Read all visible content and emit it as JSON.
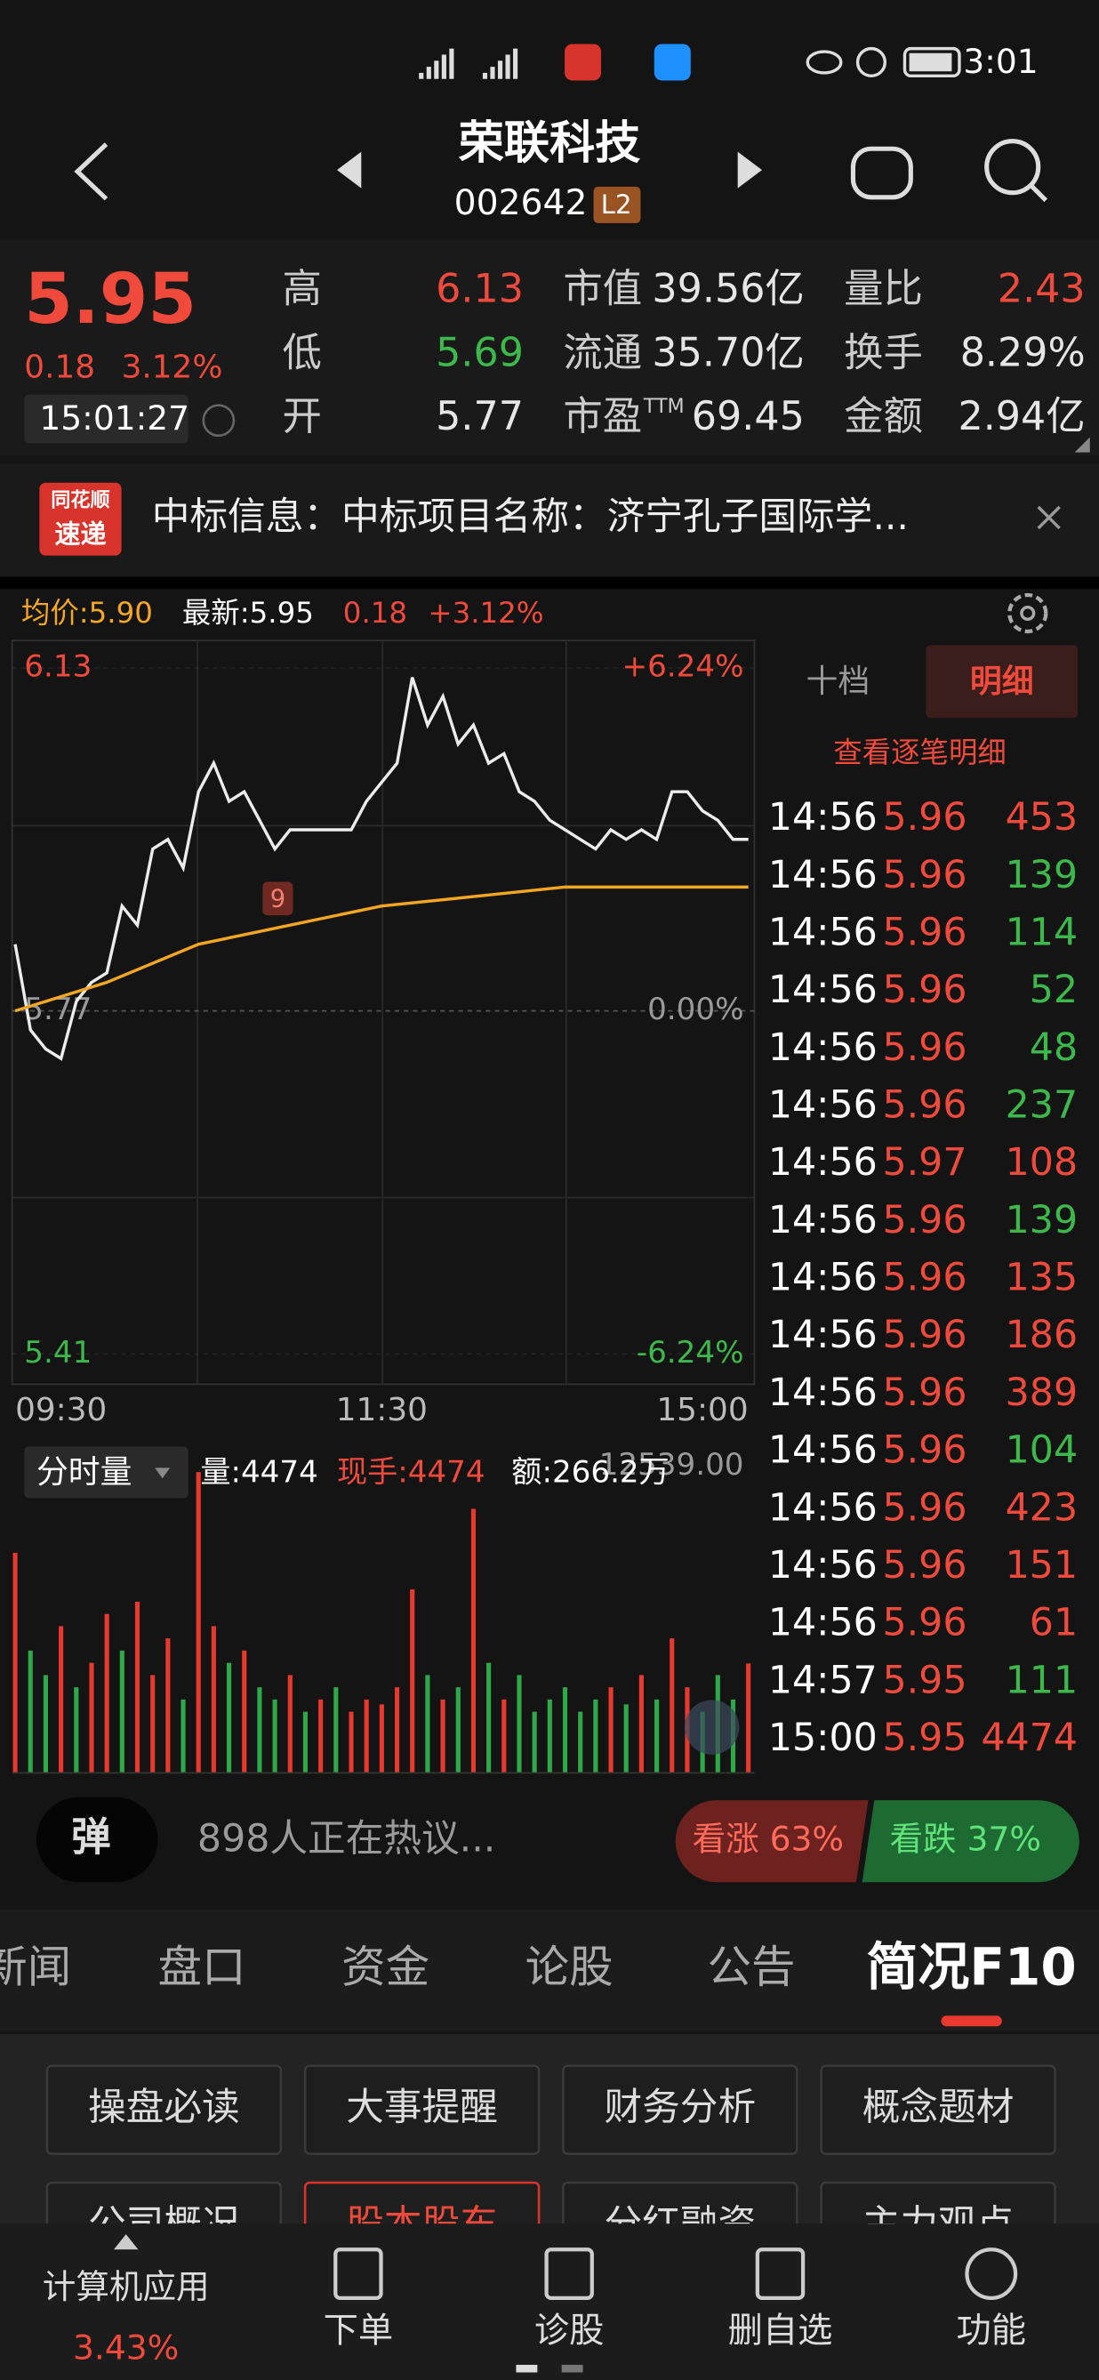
{
  "status_bar": {
    "time": "3:01"
  },
  "header": {
    "title": "荣联科技",
    "code": "002642",
    "badge": "L2"
  },
  "quote": {
    "price": "5.95",
    "change": "0.18",
    "change_pct": "3.12%",
    "time": "15:01:27",
    "fields": [
      {
        "label": "高",
        "value": "6.13",
        "color": "#f04a3c"
      },
      {
        "label": "低",
        "value": "5.69",
        "color": "#3cb94a"
      },
      {
        "label": "开",
        "value": "5.77",
        "color": "#e6e6e6"
      },
      {
        "label": "市值",
        "value": "39.56亿",
        "color": "#e6e6e6"
      },
      {
        "label": "流通",
        "value": "35.70亿",
        "color": "#e6e6e6"
      },
      {
        "label": "市盈",
        "label_sup": "TTM",
        "value": "69.45",
        "color": "#e6e6e6"
      },
      {
        "label": "量比",
        "value": "2.43",
        "color": "#f04a3c"
      },
      {
        "label": "换手",
        "value": "8.29%",
        "color": "#e6e6e6"
      },
      {
        "label": "金额",
        "value": "2.94亿",
        "color": "#e6e6e6"
      }
    ]
  },
  "news": {
    "logo_top": "同花顺",
    "logo_bottom": "速递",
    "text": "中标信息：中标项目名称：济宁孔子国际学..."
  },
  "chart_header": {
    "avg": "均价:5.90",
    "latest": "最新:5.95",
    "change": "0.18",
    "change_pct": "+3.12%"
  },
  "chart_data": [
    {
      "type": "line",
      "x": [
        0,
        5,
        10,
        15,
        20,
        25,
        30,
        35,
        40,
        45,
        50,
        55,
        60,
        65,
        70,
        75,
        80,
        85,
        90,
        95,
        100,
        105,
        110,
        115,
        120,
        125,
        130,
        135,
        140,
        145,
        150,
        155,
        160,
        165,
        170,
        175,
        180,
        185,
        190,
        195,
        200,
        205,
        210,
        215,
        220,
        225,
        230,
        235,
        240
      ],
      "xlim": [
        0,
        240
      ],
      "xticks": [
        {
          "value": 0,
          "label": "09:30"
        },
        {
          "value": 120,
          "label": "11:30"
        },
        {
          "value": 240,
          "label": "15:00"
        }
      ],
      "ylim": [
        5.41,
        6.13
      ],
      "yticks": [
        6.13,
        5.77,
        5.41
      ],
      "ytick_colors": [
        "#f04a3c",
        "#9a9a9a",
        "#3cb94a"
      ],
      "pct_ticks": [
        {
          "value": 6.13,
          "label": "+6.24%"
        },
        {
          "value": 5.77,
          "label": "0.00%"
        },
        {
          "value": 5.41,
          "label": "-6.24%"
        }
      ],
      "annotations": [
        {
          "label": "9"
        }
      ],
      "series": [
        {
          "color": "#ececec",
          "values": [
            5.84,
            5.75,
            5.73,
            5.72,
            5.78,
            5.8,
            5.81,
            5.88,
            5.86,
            5.94,
            5.95,
            5.92,
            6.0,
            6.03,
            5.99,
            6.0,
            5.97,
            5.94,
            5.96,
            5.96,
            5.96,
            5.96,
            5.96,
            5.99,
            6.01,
            6.03,
            6.12,
            6.07,
            6.1,
            6.05,
            6.07,
            6.03,
            6.04,
            6.0,
            5.99,
            5.97,
            5.96,
            5.95,
            5.94,
            5.96,
            5.95,
            5.96,
            5.95,
            6.0,
            6.0,
            5.98,
            5.97,
            5.95,
            5.95
          ]
        },
        {
          "color": "#f5a623",
          "x": [
            0,
            30,
            60,
            90,
            120,
            150,
            180,
            210,
            240
          ],
          "values": [
            5.77,
            5.8,
            5.84,
            5.86,
            5.88,
            5.89,
            5.9,
            5.9,
            5.9
          ]
        }
      ]
    },
    {
      "type": "bar",
      "x": [
        0,
        5,
        10,
        15,
        20,
        25,
        30,
        35,
        40,
        45,
        50,
        55,
        60,
        65,
        70,
        75,
        80,
        85,
        90,
        95,
        100,
        105,
        110,
        115,
        120,
        125,
        130,
        135,
        140,
        145,
        150,
        155,
        160,
        165,
        170,
        175,
        180,
        185,
        190,
        195,
        200,
        205,
        210,
        215,
        220,
        225,
        230,
        235,
        240
      ],
      "xlim": [
        0,
        240
      ],
      "ylim": [
        0,
        12539
      ],
      "yticks": [
        {
          "value": 12539,
          "label": "12539.00"
        }
      ],
      "values": [
        9000,
        5000,
        4000,
        6000,
        3500,
        4500,
        6500,
        5000,
        7000,
        4000,
        5500,
        3000,
        12300,
        6000,
        4500,
        5000,
        3500,
        3000,
        4000,
        2500,
        3000,
        3500,
        2500,
        3000,
        2800,
        3500,
        7500,
        4000,
        3000,
        3500,
        10800,
        4500,
        3000,
        4000,
        2500,
        3000,
        3500,
        2500,
        3000,
        3500,
        2800,
        4000,
        3000,
        5500,
        3500,
        2500,
        4000,
        3000,
        4474
      ],
      "colors": [
        "#e8392f",
        "#2fa84a",
        "#2fa84a",
        "#e8392f",
        "#2fa84a",
        "#e8392f",
        "#e8392f",
        "#2fa84a",
        "#e8392f",
        "#e8392f",
        "#e8392f",
        "#2fa84a",
        "#e8392f",
        "#e8392f",
        "#2fa84a",
        "#e8392f",
        "#2fa84a",
        "#2fa84a",
        "#e8392f",
        "#2fa84a",
        "#e8392f",
        "#2fa84a",
        "#e8392f",
        "#e8392f",
        "#e8392f",
        "#e8392f",
        "#e8392f",
        "#2fa84a",
        "#e8392f",
        "#2fa84a",
        "#e8392f",
        "#2fa84a",
        "#e8392f",
        "#2fa84a",
        "#2fa84a",
        "#2fa84a",
        "#2fa84a",
        "#2fa84a",
        "#2fa84a",
        "#e8392f",
        "#2fa84a",
        "#e8392f",
        "#2fa84a",
        "#e8392f",
        "#e8392f",
        "#2fa84a",
        "#2fa84a",
        "#2fa84a",
        "#e8392f"
      ]
    }
  ],
  "volume_header": {
    "mode": "分时量",
    "volume": "量:4474",
    "current": "现手:4474",
    "amount": "额:266.2万"
  },
  "trades_panel": {
    "tabs": [
      "十档",
      "明细"
    ],
    "link": "查看逐笔明细",
    "rows": [
      {
        "time": "14:56",
        "price": "5.96",
        "volume": "453",
        "color": "#f04a3c"
      },
      {
        "time": "14:56",
        "price": "5.96",
        "volume": "139",
        "color": "#3cb94a"
      },
      {
        "time": "14:56",
        "price": "5.96",
        "volume": "114",
        "color": "#3cb94a"
      },
      {
        "time": "14:56",
        "price": "5.96",
        "volume": "52",
        "color": "#3cb94a"
      },
      {
        "time": "14:56",
        "price": "5.96",
        "volume": "48",
        "color": "#3cb94a"
      },
      {
        "time": "14:56",
        "price": "5.96",
        "volume": "237",
        "color": "#3cb94a"
      },
      {
        "time": "14:56",
        "price": "5.97",
        "volume": "108",
        "color": "#f04a3c"
      },
      {
        "time": "14:56",
        "price": "5.96",
        "volume": "139",
        "color": "#3cb94a"
      },
      {
        "time": "14:56",
        "price": "5.96",
        "volume": "135",
        "color": "#f04a3c"
      },
      {
        "time": "14:56",
        "price": "5.96",
        "volume": "186",
        "color": "#f04a3c"
      },
      {
        "time": "14:56",
        "price": "5.96",
        "volume": "389",
        "color": "#f04a3c"
      },
      {
        "time": "14:56",
        "price": "5.96",
        "volume": "104",
        "color": "#3cb94a"
      },
      {
        "time": "14:56",
        "price": "5.96",
        "volume": "423",
        "color": "#f04a3c"
      },
      {
        "time": "14:56",
        "price": "5.96",
        "volume": "151",
        "color": "#f04a3c"
      },
      {
        "time": "14:56",
        "price": "5.96",
        "volume": "61",
        "color": "#f04a3c"
      },
      {
        "time": "14:57",
        "price": "5.95",
        "volume": "111",
        "color": "#3cb94a"
      },
      {
        "time": "15:00",
        "price": "5.95",
        "volume": "4474",
        "color": "#f04a3c"
      }
    ]
  },
  "discussion": {
    "bullet_button": "弹",
    "text": "898人正在热议...",
    "bull": "看涨 63%",
    "bear": "看跌 37%"
  },
  "tabs": {
    "items": [
      "新闻",
      "盘口",
      "资金",
      "论股",
      "公告",
      "简况F10"
    ],
    "active": 5
  },
  "buttons": [
    "操盘必读",
    "大事提醒",
    "财务分析",
    "概念题材",
    "公司概况",
    "股本股东",
    "分红融资",
    "主力观点"
  ],
  "bottom_nav": {
    "sector": "计算机应用",
    "sector_change": "3.43%",
    "items": [
      "下单",
      "诊股",
      "删自选",
      "功能"
    ]
  }
}
